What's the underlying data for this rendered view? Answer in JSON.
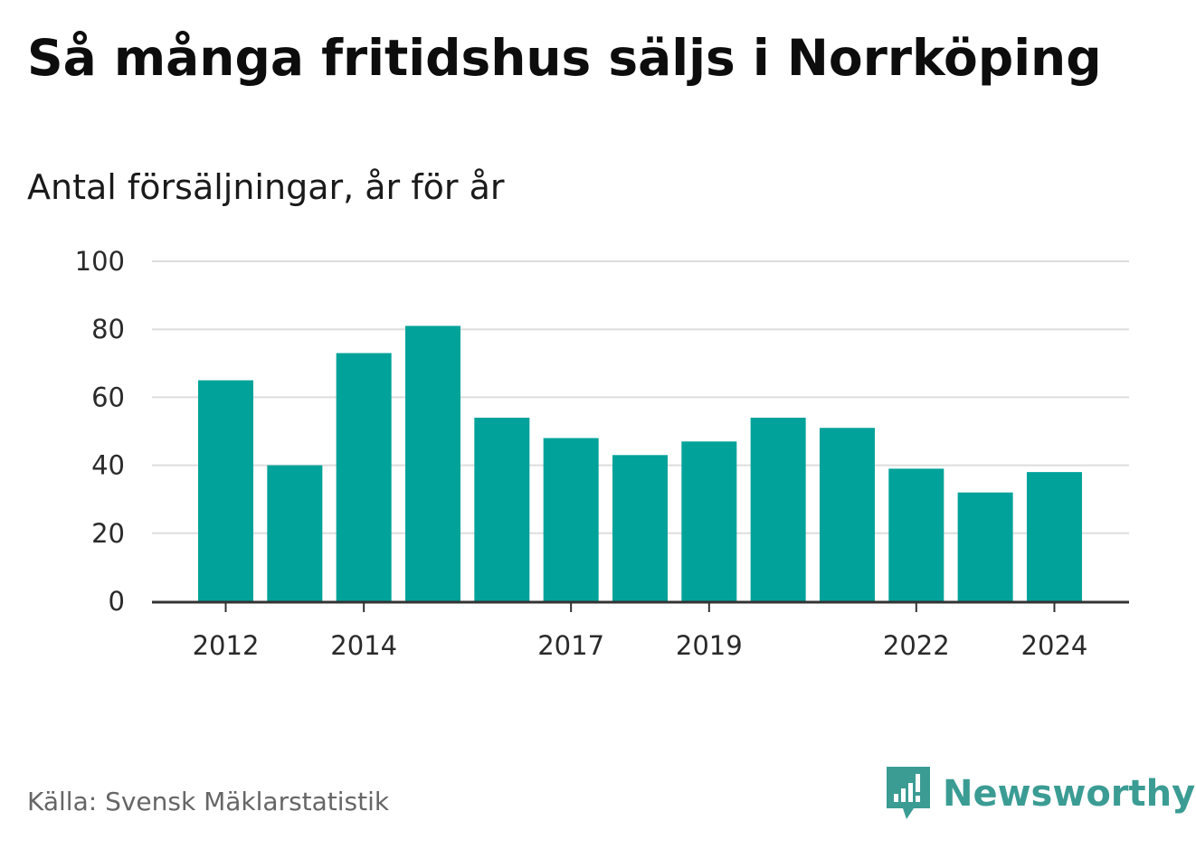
{
  "header": {
    "title": "Så många fritidshus säljs i Norrköping",
    "subtitle": "Antal försäljningar, år för år"
  },
  "footer": {
    "source": "Källa: Svensk Mäklarstatistik",
    "brand": "Newsworthy",
    "brand_icon": "newsworthy-logo-icon"
  },
  "colors": {
    "bar": "#00a29a",
    "grid": "#dddddd",
    "axis": "#333333",
    "brand": "#3b9c94"
  },
  "chart_data": {
    "type": "bar",
    "categories": [
      "2012",
      "2013",
      "2014",
      "2015",
      "2016",
      "2017",
      "2018",
      "2019",
      "2020",
      "2021",
      "2022",
      "2023",
      "2024"
    ],
    "values": [
      65,
      40,
      73,
      81,
      54,
      48,
      43,
      47,
      54,
      51,
      39,
      32,
      38
    ],
    "tick_labels_x": [
      "2012",
      "2014",
      "2017",
      "2019",
      "2022",
      "2024"
    ],
    "ylim": [
      0,
      100
    ],
    "yticks": [
      "0",
      "20",
      "40",
      "60",
      "80",
      "100"
    ],
    "xlabel": "",
    "ylabel": "",
    "grid": true,
    "legend": "none"
  }
}
